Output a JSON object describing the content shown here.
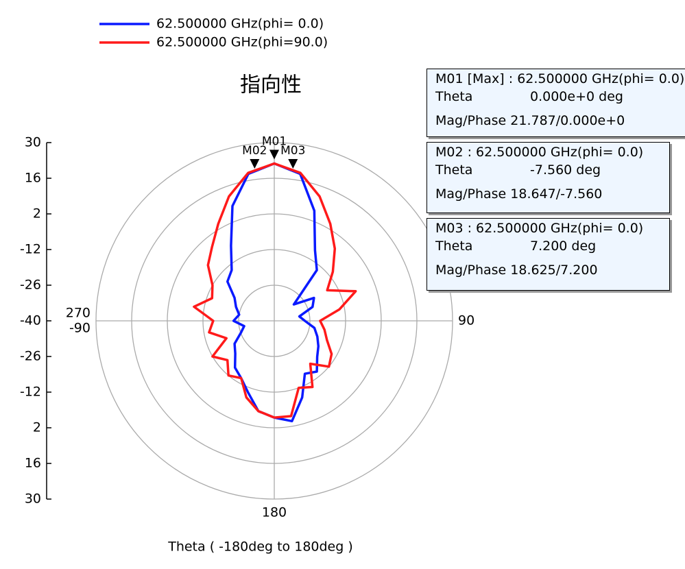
{
  "chart_data": {
    "type": "polar",
    "title": "指向性",
    "x_label": "Theta ( -180deg to 180deg )",
    "theta": [
      -180,
      -170,
      -160,
      -150,
      -140,
      -130,
      -120,
      -110,
      -100,
      -90,
      -80,
      -70,
      -60,
      -50,
      -40,
      -30,
      -20,
      -10,
      0,
      10,
      20,
      30,
      40,
      50,
      60,
      70,
      80,
      90,
      100,
      110,
      120,
      130,
      140,
      150,
      160,
      170,
      180
    ],
    "rlim": [
      -40,
      30
    ],
    "rticks": [
      -40,
      -26,
      -12,
      2,
      16,
      30
    ],
    "angle_ticks": [
      0,
      90
    ],
    "angle_labels": [
      {
        "value": 90,
        "label": "90"
      },
      {
        "value": 180,
        "label": "180"
      },
      {
        "value": 270,
        "label": "270"
      },
      {
        "value": -90,
        "label": "-90"
      }
    ],
    "series": [
      {
        "name": "62.500000 GHz(phi= 0.0)",
        "color": "#0a1aff",
        "values": [
          -2,
          -4,
          -10,
          -14,
          -16,
          -20,
          -22,
          -26,
          -28,
          -24,
          -26,
          -24,
          -22,
          -16,
          -14,
          -6,
          8,
          18.6,
          21.8,
          18.6,
          6,
          -8,
          -14,
          -30,
          -22,
          -24,
          -30,
          -28,
          -24,
          -22,
          -20,
          -18,
          -14,
          -16,
          -8,
          0,
          -2
        ]
      },
      {
        "name": "62.500000 GHz(phi=90.0)",
        "color": "#ff1a1a",
        "values": [
          -2,
          -4,
          -8,
          -14,
          -12,
          -16,
          -12,
          -20,
          -14,
          -16,
          -8,
          -14,
          -12,
          -6,
          -2,
          4,
          12,
          19,
          21.8,
          19,
          12,
          4,
          -3,
          -10,
          -16,
          -6,
          -14,
          -22,
          -20,
          -18,
          -14,
          -12,
          -18,
          -10,
          -12,
          -2,
          -2
        ]
      }
    ],
    "markers": [
      {
        "name": "M01",
        "theta": 0,
        "value": 21.787,
        "lines": [
          "M01 [Max] : 62.500000 GHz(phi= 0.0)",
          "Theta",
          "0.000e+0  deg",
          "Mag/Phase 21.787/0.000e+0"
        ]
      },
      {
        "name": "M02",
        "theta": -7.56,
        "value": 18.647,
        "lines": [
          "M02 : 62.500000 GHz(phi= 0.0)",
          "Theta",
          "-7.560  deg",
          "Mag/Phase 18.647/-7.560"
        ]
      },
      {
        "name": "M03",
        "theta": 7.2,
        "value": 18.625,
        "lines": [
          "M03 : 62.500000 GHz(phi= 0.0)",
          "Theta",
          "7.200  deg",
          "Mag/Phase 18.625/7.200"
        ]
      }
    ]
  }
}
